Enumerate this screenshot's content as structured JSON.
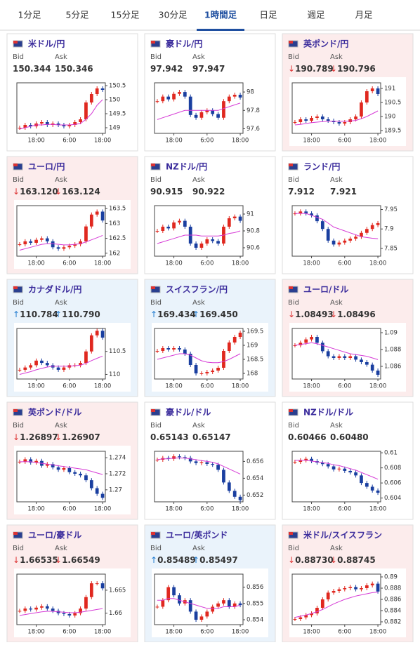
{
  "tabs": [
    "1分足",
    "5分足",
    "15分足",
    "30分足",
    "1時間足",
    "日足",
    "週足",
    "月足"
  ],
  "active_tab": 4,
  "labels": {
    "bid": "Bid",
    "ask": "Ask"
  },
  "panels": [
    {
      "name": "米ドル/円",
      "bid": "150.344",
      "ask": "150.346",
      "chart": {
        "type": "candlestick",
        "ylim": [
          148.8,
          150.6
        ],
        "yticks": [
          149,
          149.5,
          150,
          150.5
        ],
        "xticks": [
          {
            "value": 3,
            "label": "18:00"
          },
          {
            "value": 9,
            "label": "6:00"
          },
          {
            "value": 15,
            "label": "18:00"
          }
        ],
        "values": [
          149.0,
          149.1,
          149.05,
          149.15,
          149.2,
          149.1,
          149.15,
          149.1,
          149.05,
          149.1,
          149.2,
          149.3,
          149.9,
          150.2,
          150.4,
          150.35
        ],
        "ma": [
          148.95,
          149.0,
          149.05,
          149.1,
          149.1,
          149.12,
          149.12,
          149.1,
          149.1,
          149.1,
          149.12,
          149.15,
          149.3,
          149.5,
          149.8,
          150.0
        ]
      }
    },
    {
      "name": "豪ドル/円",
      "bid": "97.942",
      "ask": "97.947",
      "chart": {
        "type": "candlestick",
        "ylim": [
          97.55,
          98.1
        ],
        "yticks": [
          97.6,
          97.8,
          98
        ],
        "xticks": [
          {
            "value": 3,
            "label": "18:00"
          },
          {
            "value": 9,
            "label": "6:00"
          },
          {
            "value": 15,
            "label": "18:00"
          }
        ],
        "values": [
          97.9,
          97.95,
          97.92,
          97.98,
          98.0,
          97.95,
          97.75,
          97.72,
          97.78,
          97.8,
          97.76,
          97.72,
          97.9,
          97.95,
          97.97,
          97.94
        ],
        "ma": [
          97.7,
          97.72,
          97.74,
          97.76,
          97.78,
          97.8,
          97.8,
          97.8,
          97.8,
          97.8,
          97.8,
          97.8,
          97.82,
          97.84,
          97.86,
          97.88
        ]
      }
    },
    {
      "name": "英ポンド/円",
      "arrow": "↓",
      "bid": "190.789",
      "ask": "190.796",
      "chart": {
        "type": "candlestick",
        "ylim": [
          189.4,
          191.2
        ],
        "yticks": [
          189.5,
          190,
          190.5,
          191
        ],
        "xticks": [
          {
            "value": 3,
            "label": "18:00"
          },
          {
            "value": 9,
            "label": "6:00"
          },
          {
            "value": 15,
            "label": "18:00"
          }
        ],
        "values": [
          189.8,
          189.9,
          189.85,
          189.95,
          190.0,
          189.9,
          189.85,
          189.8,
          189.75,
          189.8,
          189.9,
          190.0,
          190.5,
          190.9,
          191.0,
          190.8
        ],
        "ma": [
          189.7,
          189.72,
          189.75,
          189.78,
          189.8,
          189.82,
          189.83,
          189.83,
          189.83,
          189.83,
          189.84,
          189.86,
          189.92,
          190.0,
          190.1,
          190.2
        ]
      }
    },
    {
      "name": "ユーロ/円",
      "arrow": "↓",
      "bid": "163.120",
      "ask": "163.124",
      "chart": {
        "type": "candlestick",
        "ylim": [
          161.9,
          163.6
        ],
        "yticks": [
          162,
          162.5,
          163,
          163.5
        ],
        "xticks": [
          {
            "value": 3,
            "label": "18:00"
          },
          {
            "value": 9,
            "label": "6:00"
          },
          {
            "value": 15,
            "label": "18:00"
          }
        ],
        "values": [
          162.3,
          162.4,
          162.35,
          162.45,
          162.5,
          162.4,
          162.2,
          162.15,
          162.2,
          162.25,
          162.3,
          162.4,
          162.9,
          163.3,
          163.4,
          163.1
        ],
        "ma": [
          162.1,
          162.15,
          162.2,
          162.25,
          162.3,
          162.32,
          162.32,
          162.3,
          162.28,
          162.28,
          162.3,
          162.32,
          162.38,
          162.45,
          162.52,
          162.6
        ]
      }
    },
    {
      "name": "NZドル/円",
      "bid": "90.915",
      "ask": "90.922",
      "chart": {
        "type": "candlestick",
        "ylim": [
          90.5,
          91.1
        ],
        "yticks": [
          90.6,
          90.8,
          91
        ],
        "xticks": [
          {
            "value": 3,
            "label": "18:00"
          },
          {
            "value": 9,
            "label": "6:00"
          },
          {
            "value": 15,
            "label": "18:00"
          }
        ],
        "values": [
          90.8,
          90.85,
          90.83,
          90.9,
          90.92,
          90.85,
          90.65,
          90.6,
          90.65,
          90.7,
          90.68,
          90.65,
          90.85,
          90.95,
          90.97,
          90.92
        ],
        "ma": [
          90.65,
          90.67,
          90.69,
          90.71,
          90.73,
          90.75,
          90.75,
          90.75,
          90.74,
          90.74,
          90.74,
          90.74,
          90.75,
          90.77,
          90.78,
          90.8
        ]
      }
    },
    {
      "name": "ランド/円",
      "bid": "7.912",
      "ask": "7.921",
      "chart": {
        "type": "candlestick",
        "ylim": [
          7.83,
          7.96
        ],
        "yticks": [
          7.85,
          7.9,
          7.95
        ],
        "xticks": [
          {
            "value": 3,
            "label": "18:00"
          },
          {
            "value": 9,
            "label": "6:00"
          },
          {
            "value": 15,
            "label": "18:00"
          }
        ],
        "values": [
          7.94,
          7.945,
          7.94,
          7.935,
          7.92,
          7.9,
          7.87,
          7.86,
          7.865,
          7.87,
          7.875,
          7.88,
          7.89,
          7.9,
          7.91,
          7.915
        ],
        "ma": [
          7.94,
          7.94,
          7.94,
          7.935,
          7.93,
          7.925,
          7.915,
          7.905,
          7.9,
          7.895,
          7.89,
          7.885,
          7.88,
          7.878,
          7.876,
          7.875
        ]
      }
    },
    {
      "name": "カナダドル/円",
      "arrow": "↑",
      "bid": "110.784",
      "ask": "110.790",
      "chart": {
        "type": "candlestick",
        "ylim": [
          109.9,
          111.0
        ],
        "yticks": [
          110,
          110.5
        ],
        "xticks": [
          {
            "value": 3,
            "label": "18:00"
          },
          {
            "value": 9,
            "label": "6:00"
          },
          {
            "value": 15,
            "label": "18:00"
          }
        ],
        "values": [
          110.1,
          110.15,
          110.2,
          110.3,
          110.25,
          110.2,
          110.15,
          110.1,
          110.15,
          110.2,
          110.2,
          110.25,
          110.5,
          110.85,
          110.95,
          110.8
        ],
        "ma": [
          110.0,
          110.03,
          110.06,
          110.1,
          110.13,
          110.16,
          110.18,
          110.18,
          110.18,
          110.18,
          110.19,
          110.2,
          110.24,
          110.3,
          110.35,
          110.4
        ]
      }
    },
    {
      "name": "スイスフラン/円",
      "arrow": "↑",
      "bid": "169.434",
      "ask": "169.450",
      "chart": {
        "type": "candlestick",
        "ylim": [
          167.8,
          169.6
        ],
        "yticks": [
          168,
          168.5,
          169,
          169.5
        ],
        "xticks": [
          {
            "value": 3,
            "label": "18:00"
          },
          {
            "value": 9,
            "label": "6:00"
          },
          {
            "value": 15,
            "label": "18:00"
          }
        ],
        "values": [
          168.8,
          168.9,
          168.85,
          168.9,
          168.85,
          168.7,
          168.3,
          168.0,
          168.0,
          168.05,
          168.1,
          168.2,
          168.8,
          169.1,
          169.3,
          169.45
        ],
        "ma": [
          168.5,
          168.55,
          168.6,
          168.65,
          168.7,
          168.7,
          168.65,
          168.55,
          168.45,
          168.4,
          168.38,
          168.38,
          168.42,
          168.5,
          168.6,
          168.7
        ]
      }
    },
    {
      "name": "ユーロ/ドル",
      "arrow": "↓",
      "bid": "1.08493",
      "ask": "1.08496",
      "chart": {
        "type": "candlestick",
        "ylim": [
          1.0845,
          1.0905
        ],
        "yticks": [
          1.086,
          1.088,
          1.09
        ],
        "xticks": [
          {
            "value": 3,
            "label": "18:00"
          },
          {
            "value": 9,
            "label": "6:00"
          },
          {
            "value": 15,
            "label": "18:00"
          }
        ],
        "values": [
          1.0885,
          1.0888,
          1.0892,
          1.0895,
          1.0888,
          1.0878,
          1.0872,
          1.087,
          1.0872,
          1.087,
          1.0872,
          1.0868,
          1.0865,
          1.0862,
          1.0855,
          1.085
        ],
        "ma": [
          1.0885,
          1.0886,
          1.0887,
          1.0888,
          1.0887,
          1.0885,
          1.0883,
          1.0881,
          1.0879,
          1.0877,
          1.0875,
          1.0874,
          1.0873,
          1.0872,
          1.087,
          1.0868
        ]
      }
    },
    {
      "name": "英ポンド/ドル",
      "arrow": "↓",
      "bid": "1.26897",
      "ask": "1.26907",
      "chart": {
        "type": "candlestick",
        "ylim": [
          1.2685,
          1.2748
        ],
        "yticks": [
          1.27,
          1.272,
          1.274
        ],
        "xticks": [
          {
            "value": 3,
            "label": "18:00"
          },
          {
            "value": 9,
            "label": "6:00"
          },
          {
            "value": 15,
            "label": "18:00"
          }
        ],
        "values": [
          1.2735,
          1.2738,
          1.2734,
          1.2736,
          1.273,
          1.2732,
          1.2728,
          1.2725,
          1.2727,
          1.2722,
          1.272,
          1.2718,
          1.2712,
          1.2702,
          1.2695,
          1.269
        ],
        "ma": [
          1.2735,
          1.2735,
          1.2735,
          1.2734,
          1.2733,
          1.2732,
          1.2731,
          1.273,
          1.2729,
          1.2728,
          1.2727,
          1.2726,
          1.2725,
          1.2723,
          1.2721,
          1.2719
        ]
      }
    },
    {
      "name": "豪ドル/ドル",
      "bid": "0.65143",
      "ask": "0.65147",
      "chart": {
        "type": "candlestick",
        "ylim": [
          0.6512,
          0.6572
        ],
        "yticks": [
          0.652,
          0.654,
          0.656
        ],
        "xticks": [
          {
            "value": 3,
            "label": "18:00"
          },
          {
            "value": 9,
            "label": "6:00"
          },
          {
            "value": 15,
            "label": "18:00"
          }
        ],
        "values": [
          0.6562,
          0.6564,
          0.6563,
          0.6566,
          0.6565,
          0.6564,
          0.656,
          0.6558,
          0.6559,
          0.6557,
          0.6556,
          0.655,
          0.6535,
          0.6525,
          0.6518,
          0.6514
        ],
        "ma": [
          0.6562,
          0.6563,
          0.6563,
          0.6564,
          0.6564,
          0.6564,
          0.6563,
          0.6562,
          0.6561,
          0.656,
          0.6559,
          0.6557,
          0.6554,
          0.6551,
          0.6548,
          0.6545
        ]
      }
    },
    {
      "name": "NZドル/ドル",
      "bid": "0.60466",
      "ask": "0.60480",
      "chart": {
        "type": "candlestick",
        "ylim": [
          0.6035,
          0.6102
        ],
        "yticks": [
          0.604,
          0.606,
          0.608,
          0.61
        ],
        "xticks": [
          {
            "value": 3,
            "label": "18:00"
          },
          {
            "value": 9,
            "label": "6:00"
          },
          {
            "value": 15,
            "label": "18:00"
          }
        ],
        "values": [
          0.6088,
          0.609,
          0.6092,
          0.6089,
          0.6087,
          0.6085,
          0.6082,
          0.6078,
          0.6079,
          0.6076,
          0.6074,
          0.607,
          0.606,
          0.6055,
          0.605,
          0.6047
        ],
        "ma": [
          0.609,
          0.609,
          0.609,
          0.6089,
          0.6088,
          0.6087,
          0.6086,
          0.6084,
          0.6083,
          0.6081,
          0.6079,
          0.6077,
          0.6074,
          0.6071,
          0.6068,
          0.6065
        ]
      }
    },
    {
      "name": "ユーロ/豪ドル",
      "arrow": "↓",
      "bid": "1.66535",
      "ask": "1.66549",
      "chart": {
        "type": "candlestick",
        "ylim": [
          1.6575,
          1.6685
        ],
        "yticks": [
          1.66,
          1.665
        ],
        "xticks": [
          {
            "value": 3,
            "label": "18:00"
          },
          {
            "value": 9,
            "label": "6:00"
          },
          {
            "value": 15,
            "label": "18:00"
          }
        ],
        "values": [
          1.6605,
          1.661,
          1.6608,
          1.6612,
          1.6615,
          1.661,
          1.6605,
          1.66,
          1.6598,
          1.6595,
          1.66,
          1.661,
          1.6635,
          1.6665,
          1.6665,
          1.6654
        ],
        "ma": [
          1.6595,
          1.6597,
          1.6599,
          1.6601,
          1.6603,
          1.6604,
          1.6604,
          1.6603,
          1.6602,
          1.6601,
          1.6601,
          1.6602,
          1.6604,
          1.6606,
          1.6608,
          1.661
        ]
      }
    },
    {
      "name": "ユーロ/英ポンド",
      "arrow": "↑",
      "bid": "0.85489",
      "ask": "0.85497",
      "chart": {
        "type": "candlestick",
        "ylim": [
          0.8537,
          0.8568
        ],
        "yticks": [
          0.854,
          0.855,
          0.856
        ],
        "xticks": [
          {
            "value": 3,
            "label": "18:00"
          },
          {
            "value": 9,
            "label": "6:00"
          },
          {
            "value": 15,
            "label": "18:00"
          }
        ],
        "values": [
          0.8548,
          0.8552,
          0.856,
          0.8555,
          0.855,
          0.8552,
          0.8545,
          0.854,
          0.8542,
          0.8545,
          0.8548,
          0.855,
          0.8552,
          0.8548,
          0.855,
          0.8549
        ],
        "ma": [
          0.8552,
          0.8552,
          0.8553,
          0.8553,
          0.8552,
          0.8551,
          0.855,
          0.8549,
          0.8548,
          0.8547,
          0.8547,
          0.8547,
          0.8548,
          0.8548,
          0.8548,
          0.8549
        ]
      }
    },
    {
      "name": "米ドル/スイスフラン",
      "arrow": "↓",
      "bid": "0.88730",
      "ask": "0.88745",
      "chart": {
        "type": "candlestick",
        "ylim": [
          0.8815,
          0.8905
        ],
        "yticks": [
          0.882,
          0.884,
          0.886,
          0.888,
          0.89
        ],
        "xticks": [
          {
            "value": 3,
            "label": "18:00"
          },
          {
            "value": 9,
            "label": "6:00"
          },
          {
            "value": 15,
            "label": "18:00"
          }
        ],
        "values": [
          0.8825,
          0.8828,
          0.8832,
          0.8835,
          0.8845,
          0.886,
          0.8872,
          0.8875,
          0.8878,
          0.888,
          0.8882,
          0.8878,
          0.888,
          0.8885,
          0.8888,
          0.8874
        ],
        "ma": [
          0.8828,
          0.883,
          0.8832,
          0.8835,
          0.8838,
          0.8842,
          0.8847,
          0.8852,
          0.8856,
          0.886,
          0.8863,
          0.8866,
          0.8868,
          0.887,
          0.8872,
          0.8873
        ]
      }
    }
  ]
}
